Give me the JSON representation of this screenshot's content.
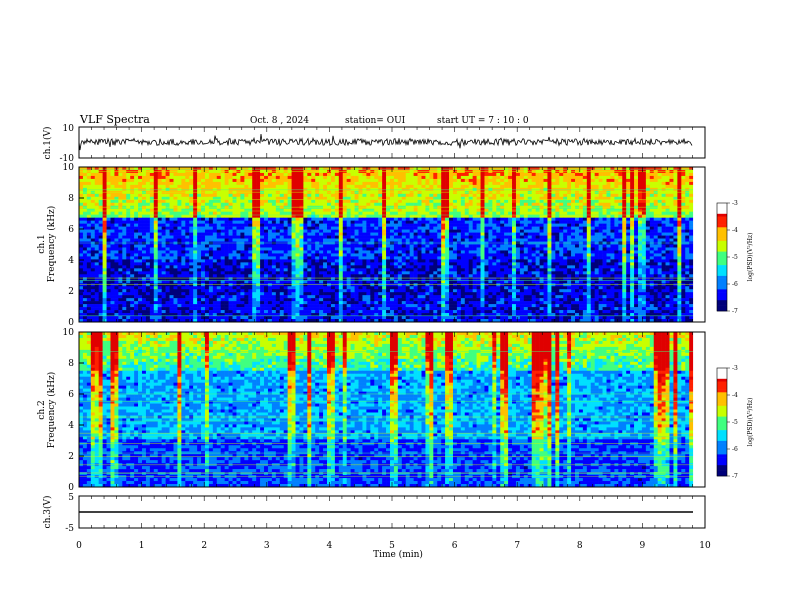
{
  "header": {
    "title": "VLF Spectra",
    "date": "Oct. 8 , 2024",
    "station": "station= OUI",
    "start_ut": "start  UT =  7 : 10 : 0"
  },
  "chart_data": [
    {
      "type": "line",
      "id": "ch1-waveform",
      "ylabel": "ch.1(V)",
      "ylim": [
        -10,
        10
      ],
      "yticks": [
        "10",
        "-10"
      ],
      "series_color": "#000000"
    },
    {
      "type": "heatmap",
      "id": "ch1-spectrogram",
      "ylabel": "ch.1\nFrequency (kHz)",
      "ylabel_line1": "ch.1",
      "ylabel_line2": "Frequency (kHz)",
      "ylim": [
        0,
        10
      ],
      "yticks": [
        "0",
        "2",
        "4",
        "6",
        "8",
        "10"
      ],
      "colorbar": {
        "label": "log(PSD)(V²/Hz)",
        "ticks": [
          "-3",
          "-4",
          "-5",
          "-6",
          "-7"
        ],
        "range": [
          -7,
          -3
        ]
      }
    },
    {
      "type": "heatmap",
      "id": "ch2-spectrogram",
      "ylabel_line1": "ch.2",
      "ylabel_line2": "Frequency (kHz)",
      "ylim": [
        0,
        10
      ],
      "yticks": [
        "0",
        "2",
        "4",
        "6",
        "8",
        "10"
      ],
      "colorbar": {
        "label": "log(PSD)(V²/Hz)",
        "ticks": [
          "-3",
          "-4",
          "-5",
          "-6",
          "-7"
        ],
        "range": [
          -7,
          -3
        ]
      }
    },
    {
      "type": "line",
      "id": "ch3-waveform",
      "ylabel": "ch.3(V)",
      "ylim": [
        -5,
        5
      ],
      "yticks": [
        "5",
        "-5"
      ],
      "series_color": "#000000"
    }
  ],
  "xaxis": {
    "label": "Time  (min)",
    "range": [
      0,
      10
    ],
    "ticks": [
      "0",
      "1",
      "2",
      "3",
      "4",
      "5",
      "6",
      "7",
      "8",
      "9",
      "10"
    ]
  },
  "colormap": [
    "#00007a",
    "#0000ff",
    "#0080ff",
    "#00e0ff",
    "#40ff80",
    "#c8ff00",
    "#ffc000",
    "#ff2000",
    "#e00000",
    "#ffffff"
  ]
}
